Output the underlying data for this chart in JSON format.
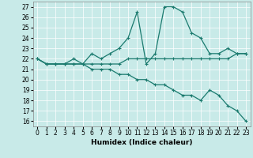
{
  "xlabel": "Humidex (Indice chaleur)",
  "xlim": [
    -0.5,
    23.5
  ],
  "ylim": [
    15.5,
    27.5
  ],
  "xticks": [
    0,
    1,
    2,
    3,
    4,
    5,
    6,
    7,
    8,
    9,
    10,
    11,
    12,
    13,
    14,
    15,
    16,
    17,
    18,
    19,
    20,
    21,
    22,
    23
  ],
  "yticks": [
    16,
    17,
    18,
    19,
    20,
    21,
    22,
    23,
    24,
    25,
    26,
    27
  ],
  "line_color": "#1a7a6e",
  "background_color": "#c8eae8",
  "line1_x": [
    0,
    1,
    2,
    3,
    4,
    5,
    6,
    7,
    8,
    9,
    10,
    11,
    12,
    13,
    14,
    15,
    16,
    17,
    18,
    19,
    20,
    21,
    22,
    23
  ],
  "line1_y": [
    22.0,
    21.5,
    21.5,
    21.5,
    22.0,
    21.5,
    22.5,
    22.0,
    22.5,
    23.0,
    24.0,
    26.5,
    21.5,
    22.5,
    27.0,
    27.0,
    26.5,
    24.5,
    24.0,
    22.5,
    22.5,
    23.0,
    22.5,
    22.5
  ],
  "line2_x": [
    0,
    1,
    2,
    3,
    4,
    5,
    6,
    7,
    8,
    9,
    10,
    11,
    12,
    13,
    14,
    15,
    16,
    17,
    18,
    19,
    20,
    21,
    22,
    23
  ],
  "line2_y": [
    22.0,
    21.5,
    21.5,
    21.5,
    21.5,
    21.5,
    21.5,
    21.5,
    21.5,
    21.5,
    22.0,
    22.0,
    22.0,
    22.0,
    22.0,
    22.0,
    22.0,
    22.0,
    22.0,
    22.0,
    22.0,
    22.0,
    22.5,
    22.5
  ],
  "line3_x": [
    0,
    1,
    2,
    3,
    4,
    5,
    6,
    7,
    8,
    9,
    10,
    11,
    12,
    13,
    14,
    15,
    16,
    17,
    18,
    19,
    20,
    21,
    22,
    23
  ],
  "line3_y": [
    22.0,
    21.5,
    21.5,
    21.5,
    21.5,
    21.5,
    21.0,
    21.0,
    21.0,
    20.5,
    20.5,
    20.0,
    20.0,
    19.5,
    19.5,
    19.0,
    18.5,
    18.5,
    18.0,
    19.0,
    18.5,
    17.5,
    17.0,
    16.0
  ],
  "marker": "+",
  "markersize": 3,
  "linewidth": 0.9,
  "tick_fontsize": 5.5,
  "label_fontsize": 6.5
}
